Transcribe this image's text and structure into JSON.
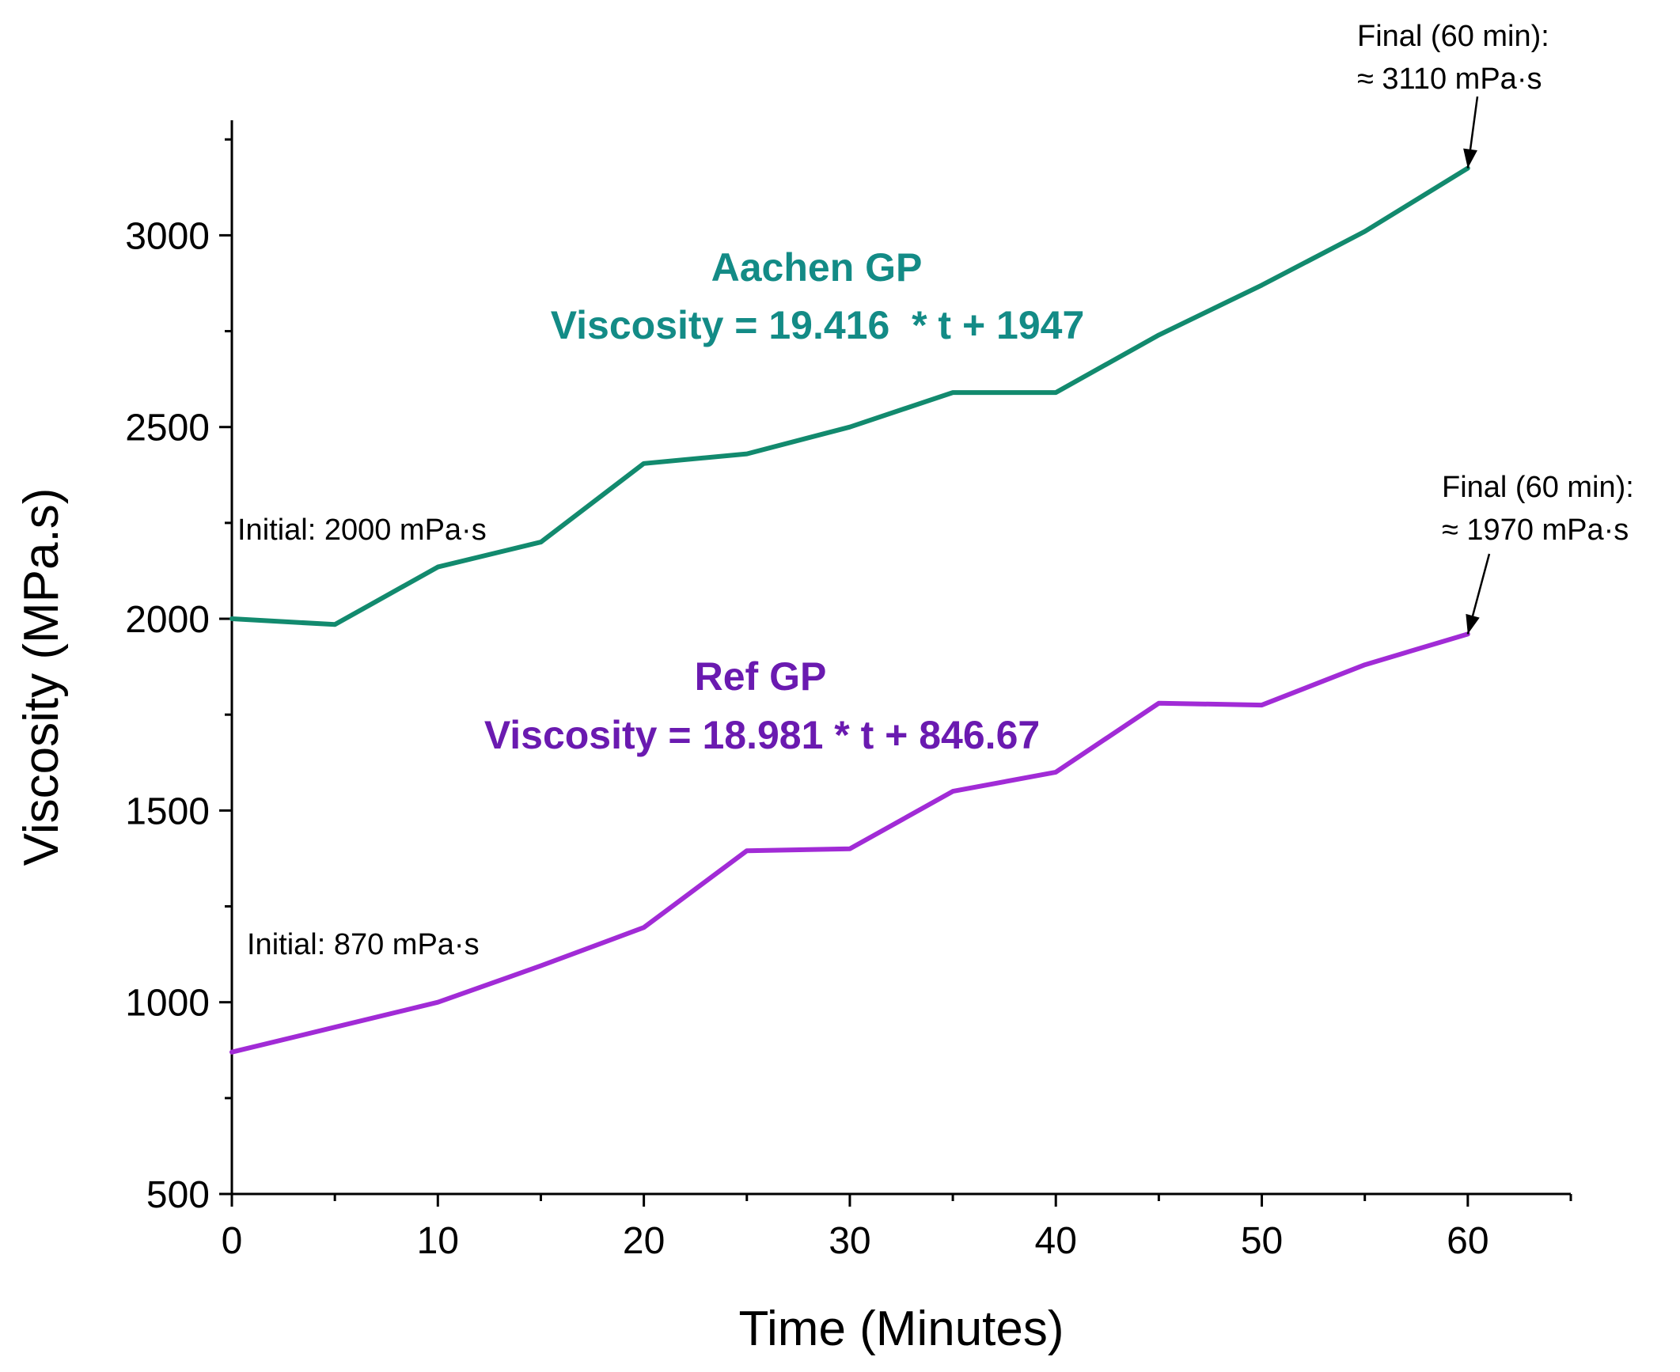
{
  "chart_data": {
    "type": "line",
    "xlabel": "Time (Minutes)",
    "ylabel": "Viscosity (MPa.s)",
    "xlim": [
      0,
      65
    ],
    "ylim": [
      500,
      3300
    ],
    "x_ticks": [
      0,
      10,
      20,
      30,
      40,
      50,
      60
    ],
    "y_ticks": [
      500,
      1000,
      1500,
      2000,
      2500,
      3000
    ],
    "grid": false,
    "series": [
      {
        "name": "Aachen GP",
        "equation": "Viscosity = 19.416  * t + 1947",
        "color": "#128a6e",
        "x": [
          0,
          5,
          10,
          15,
          20,
          25,
          30,
          35,
          40,
          45,
          50,
          55,
          60
        ],
        "values": [
          2000,
          1985,
          2135,
          2200,
          2405,
          2430,
          2500,
          2590,
          2590,
          2740,
          2870,
          3010,
          3175
        ],
        "initial_note": "Initial: 2000 mPa·s",
        "final_note_line1": "Final (60 min):",
        "final_note_line2": "≈ 3110 mPa·s"
      },
      {
        "name": "Ref GP",
        "equation": "Viscosity = 18.981 * t + 846.67",
        "color": "#a12bd6",
        "x": [
          0,
          5,
          10,
          15,
          20,
          25,
          30,
          35,
          40,
          45,
          50,
          55,
          60
        ],
        "values": [
          870,
          935,
          1000,
          1095,
          1195,
          1395,
          1400,
          1550,
          1600,
          1780,
          1775,
          1880,
          1960
        ],
        "initial_note": "Initial: 870 mPa·s",
        "final_note_line1": "Final (60 min):",
        "final_note_line2": "≈ 1970 mPa·s"
      }
    ]
  },
  "colors": {
    "aachen_title": "#138b86",
    "ref_title": "#6a1ab0"
  }
}
